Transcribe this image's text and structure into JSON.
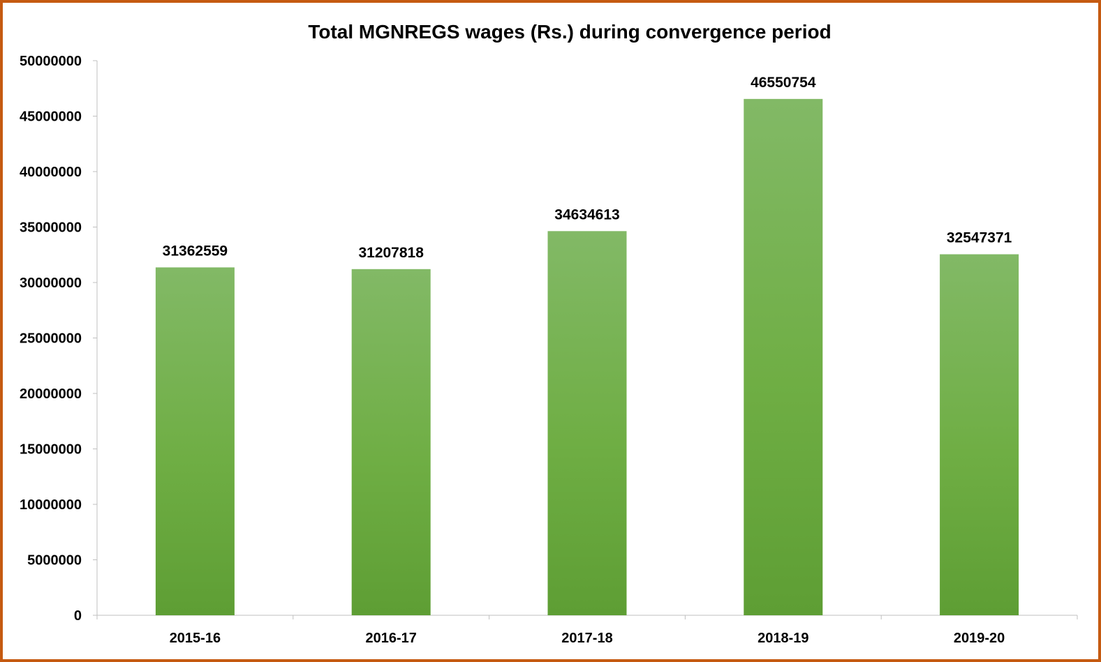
{
  "chart_data": {
    "type": "bar",
    "title": "Total MGNREGS wages (Rs.) during convergence period",
    "xlabel": "",
    "ylabel": "",
    "categories": [
      "2015-16",
      "2016-17",
      "2017-18",
      "2018-19",
      "2019-20"
    ],
    "values": [
      31362559,
      31207818,
      34634613,
      46550754,
      32547371
    ],
    "data_labels": [
      "31362559",
      "31207818",
      "34634613",
      "46550754",
      "32547371"
    ],
    "ylim": [
      0,
      50000000
    ],
    "yticks": [
      0,
      5000000,
      10000000,
      15000000,
      20000000,
      25000000,
      30000000,
      35000000,
      40000000,
      45000000,
      50000000
    ],
    "ytick_labels": [
      "0",
      "5000000",
      "10000000",
      "15000000",
      "20000000",
      "25000000",
      "30000000",
      "35000000",
      "40000000",
      "45000000",
      "50000000"
    ],
    "grid": false,
    "legend": "none",
    "bar_color": "#70ad47",
    "border_color": "#c55a11"
  }
}
